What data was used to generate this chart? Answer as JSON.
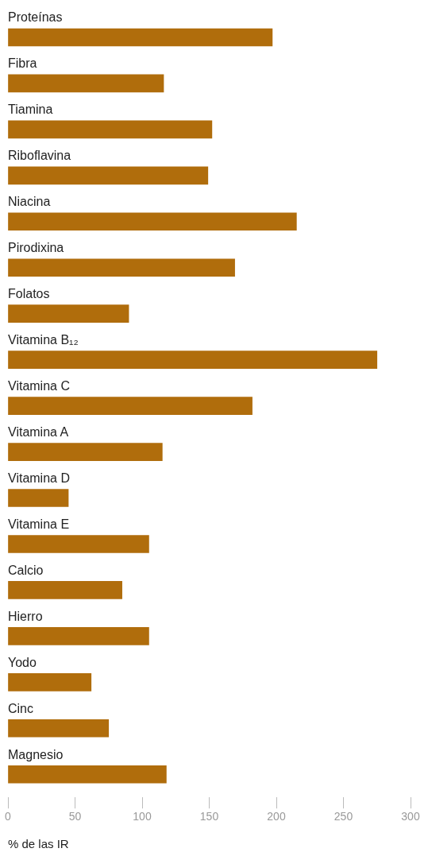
{
  "chart_data": {
    "type": "bar",
    "orientation": "horizontal",
    "categories": [
      "Proteínas",
      "Fibra",
      "Tiamina",
      "Riboflavina",
      "Niacina",
      "Pirodixina",
      "Folatos",
      "Vitamina B₁₂",
      "Vitamina C",
      "Vitamina A",
      "Vitamina D",
      "Vitamina E",
      "Calcio",
      "Hierro",
      "Yodo",
      "Cinc",
      "Magnesio"
    ],
    "values": [
      197,
      116,
      152,
      149,
      215,
      169,
      90,
      275,
      182,
      115,
      45,
      105,
      85,
      105,
      62,
      75,
      118
    ],
    "color": "#b06d0c",
    "xlim": [
      0,
      300
    ],
    "xticks": [
      0,
      50,
      100,
      150,
      200,
      250,
      300
    ],
    "xlabel": "% de las IR"
  }
}
